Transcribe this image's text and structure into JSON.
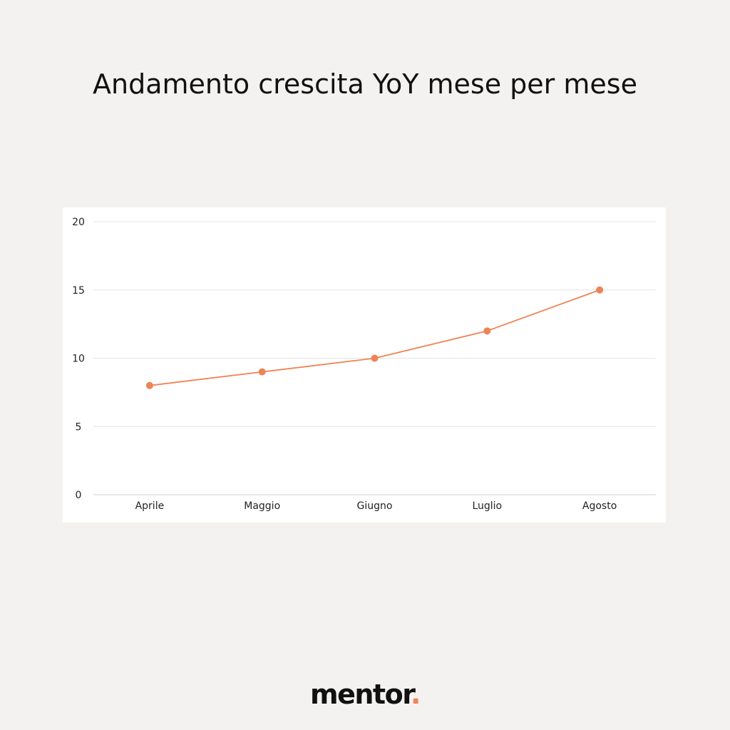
{
  "title": "Andamento crescita YoY mese per mese",
  "brand": {
    "logo_text": "mentor",
    "logo_dot": "."
  },
  "colors": {
    "background": "#f3f2f0",
    "accent": "#ee8355",
    "text": "#111111",
    "grid": "#e4e4e4"
  },
  "chart_data": {
    "type": "line",
    "categories": [
      "Aprile",
      "Maggio",
      "Giugno",
      "Luglio",
      "Agosto"
    ],
    "values": [
      8,
      9,
      10,
      12,
      15
    ],
    "title": "Andamento crescita YoY mese per mese",
    "xlabel": "",
    "ylabel": "",
    "ylim": [
      0,
      20
    ],
    "yticks": [
      0,
      5,
      10,
      15,
      20
    ],
    "grid": true,
    "legend": "none",
    "marker": "circle",
    "color": "#ee8355"
  }
}
